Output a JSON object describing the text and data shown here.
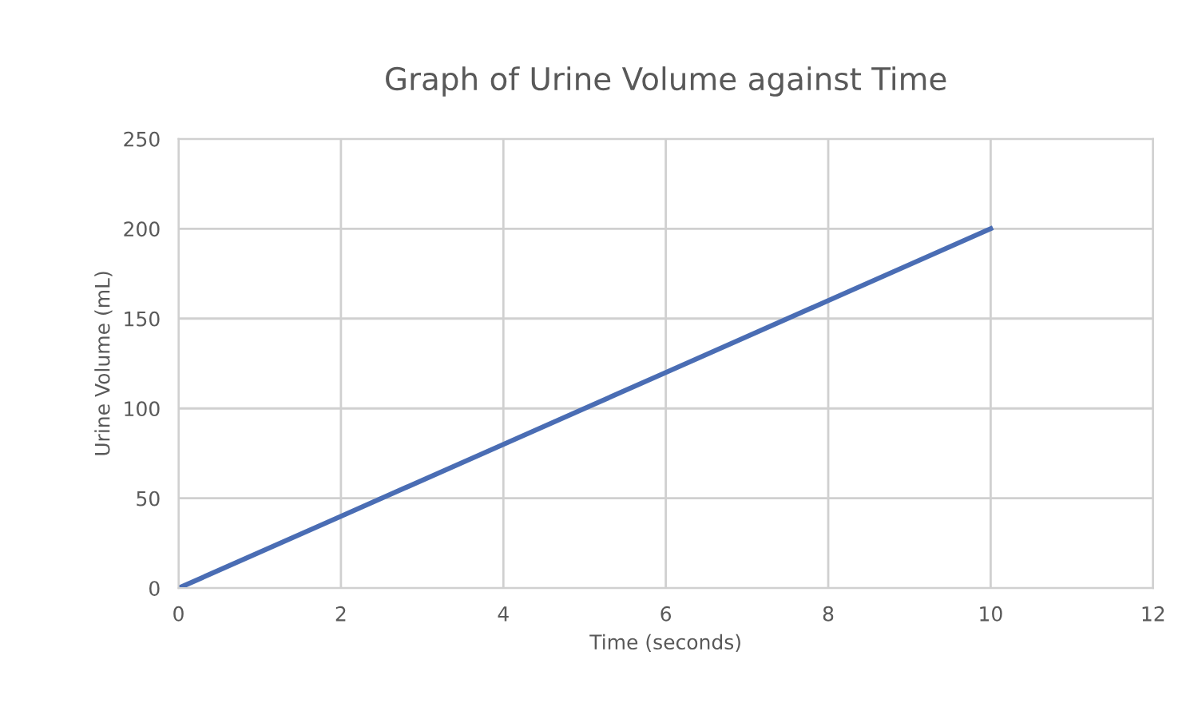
{
  "chart_data": {
    "type": "line",
    "title": "Graph of Urine Volume against Time",
    "xlabel": "Time (seconds)",
    "ylabel": "Urine Volume (mL)",
    "x": [
      0,
      2,
      4,
      6,
      8,
      10
    ],
    "series": [
      {
        "color": "#4a6db4",
        "values": [
          0,
          40,
          80,
          120,
          160,
          200
        ]
      }
    ],
    "xlim": [
      0,
      12
    ],
    "xticks": [
      0,
      2,
      4,
      6,
      8,
      10,
      12
    ],
    "ylim": [
      0,
      250
    ],
    "yticks": [
      0,
      50,
      100,
      150,
      200,
      250
    ],
    "grid": true,
    "marker": "none",
    "line_style": "solid"
  }
}
